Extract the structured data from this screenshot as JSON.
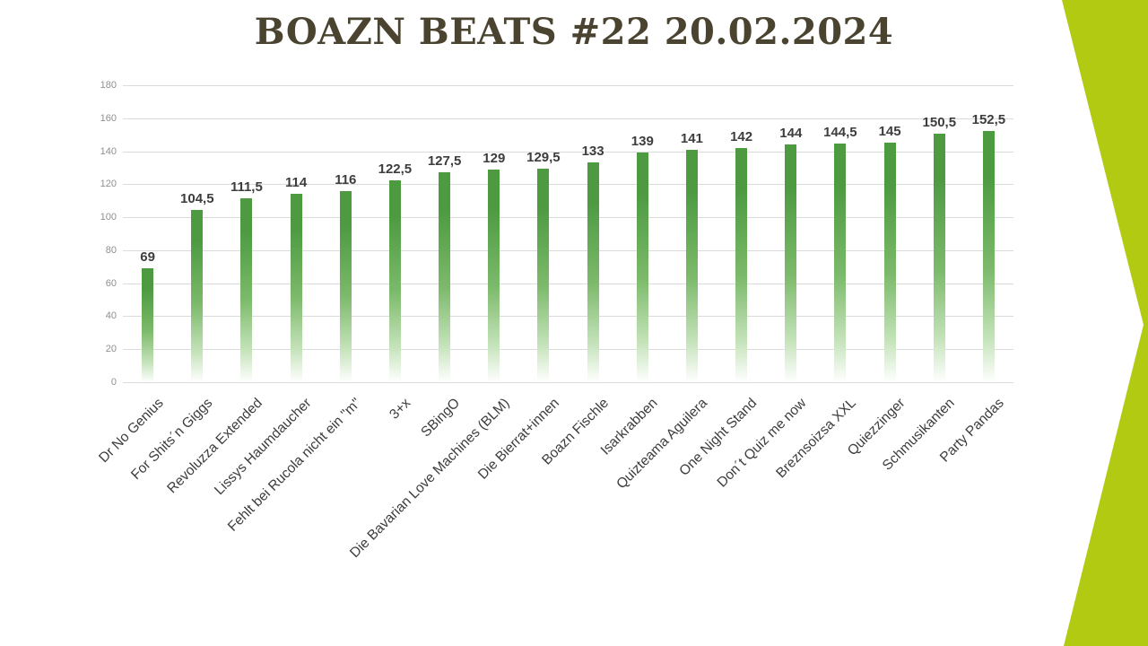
{
  "title": "BOAZN BEATS #22 20.02.2024",
  "colors": {
    "accent_green": "#b3ca12",
    "bar_gradient_top": "#4d9a41",
    "bar_gradient_mid": "#7cba6b",
    "bar_gradient_light": "#c3e2b8",
    "bar_gradient_bottom": "#ffffff",
    "title_text": "#4a432f",
    "axis_tick_text": "#8f8f8f",
    "data_label_text": "#3d3d3d",
    "gridline": "#dbdbdb",
    "background": "#ffffff"
  },
  "chart_data": {
    "type": "bar",
    "title": "BOAZN BEATS #22 20.02.2024",
    "categories": [
      "Dr No Genius",
      "For Shits´n Giggs",
      "Revoluzza Extended",
      "Lissys Haumdaucher",
      "Fehlt bei Rucola nicht ein \"m\"",
      "3+x",
      "SBingO",
      "Die Bavarian Love Machines (BLM)",
      "Die Bierrat+innen",
      "Boazn Fischle",
      "Isarkrabben",
      "Quizteama Aguilera",
      "One Night Stand",
      "Don´t Quiz me now",
      "Breznsoizsa XXL",
      "Quiezzinger",
      "Schmusikanten",
      "Party Pandas"
    ],
    "values": [
      69,
      104.5,
      111.5,
      114,
      116,
      122.5,
      127.5,
      129,
      129.5,
      133,
      139,
      141,
      142,
      144,
      144.5,
      145,
      150.5,
      152.5
    ],
    "value_labels": [
      "69",
      "104,5",
      "111,5",
      "114",
      "116",
      "122,5",
      "127,5",
      "129",
      "129,5",
      "133",
      "139",
      "141",
      "142",
      "144",
      "144,5",
      "145",
      "150,5",
      "152,5"
    ],
    "xlabel": "",
    "ylabel": "",
    "ylim": [
      0,
      180
    ],
    "ytick_interval": 20,
    "yticks": [
      0,
      20,
      40,
      60,
      80,
      100,
      120,
      140,
      160,
      180
    ],
    "grid": true,
    "legend": false,
    "bar_label_decimal_separator": ","
  }
}
